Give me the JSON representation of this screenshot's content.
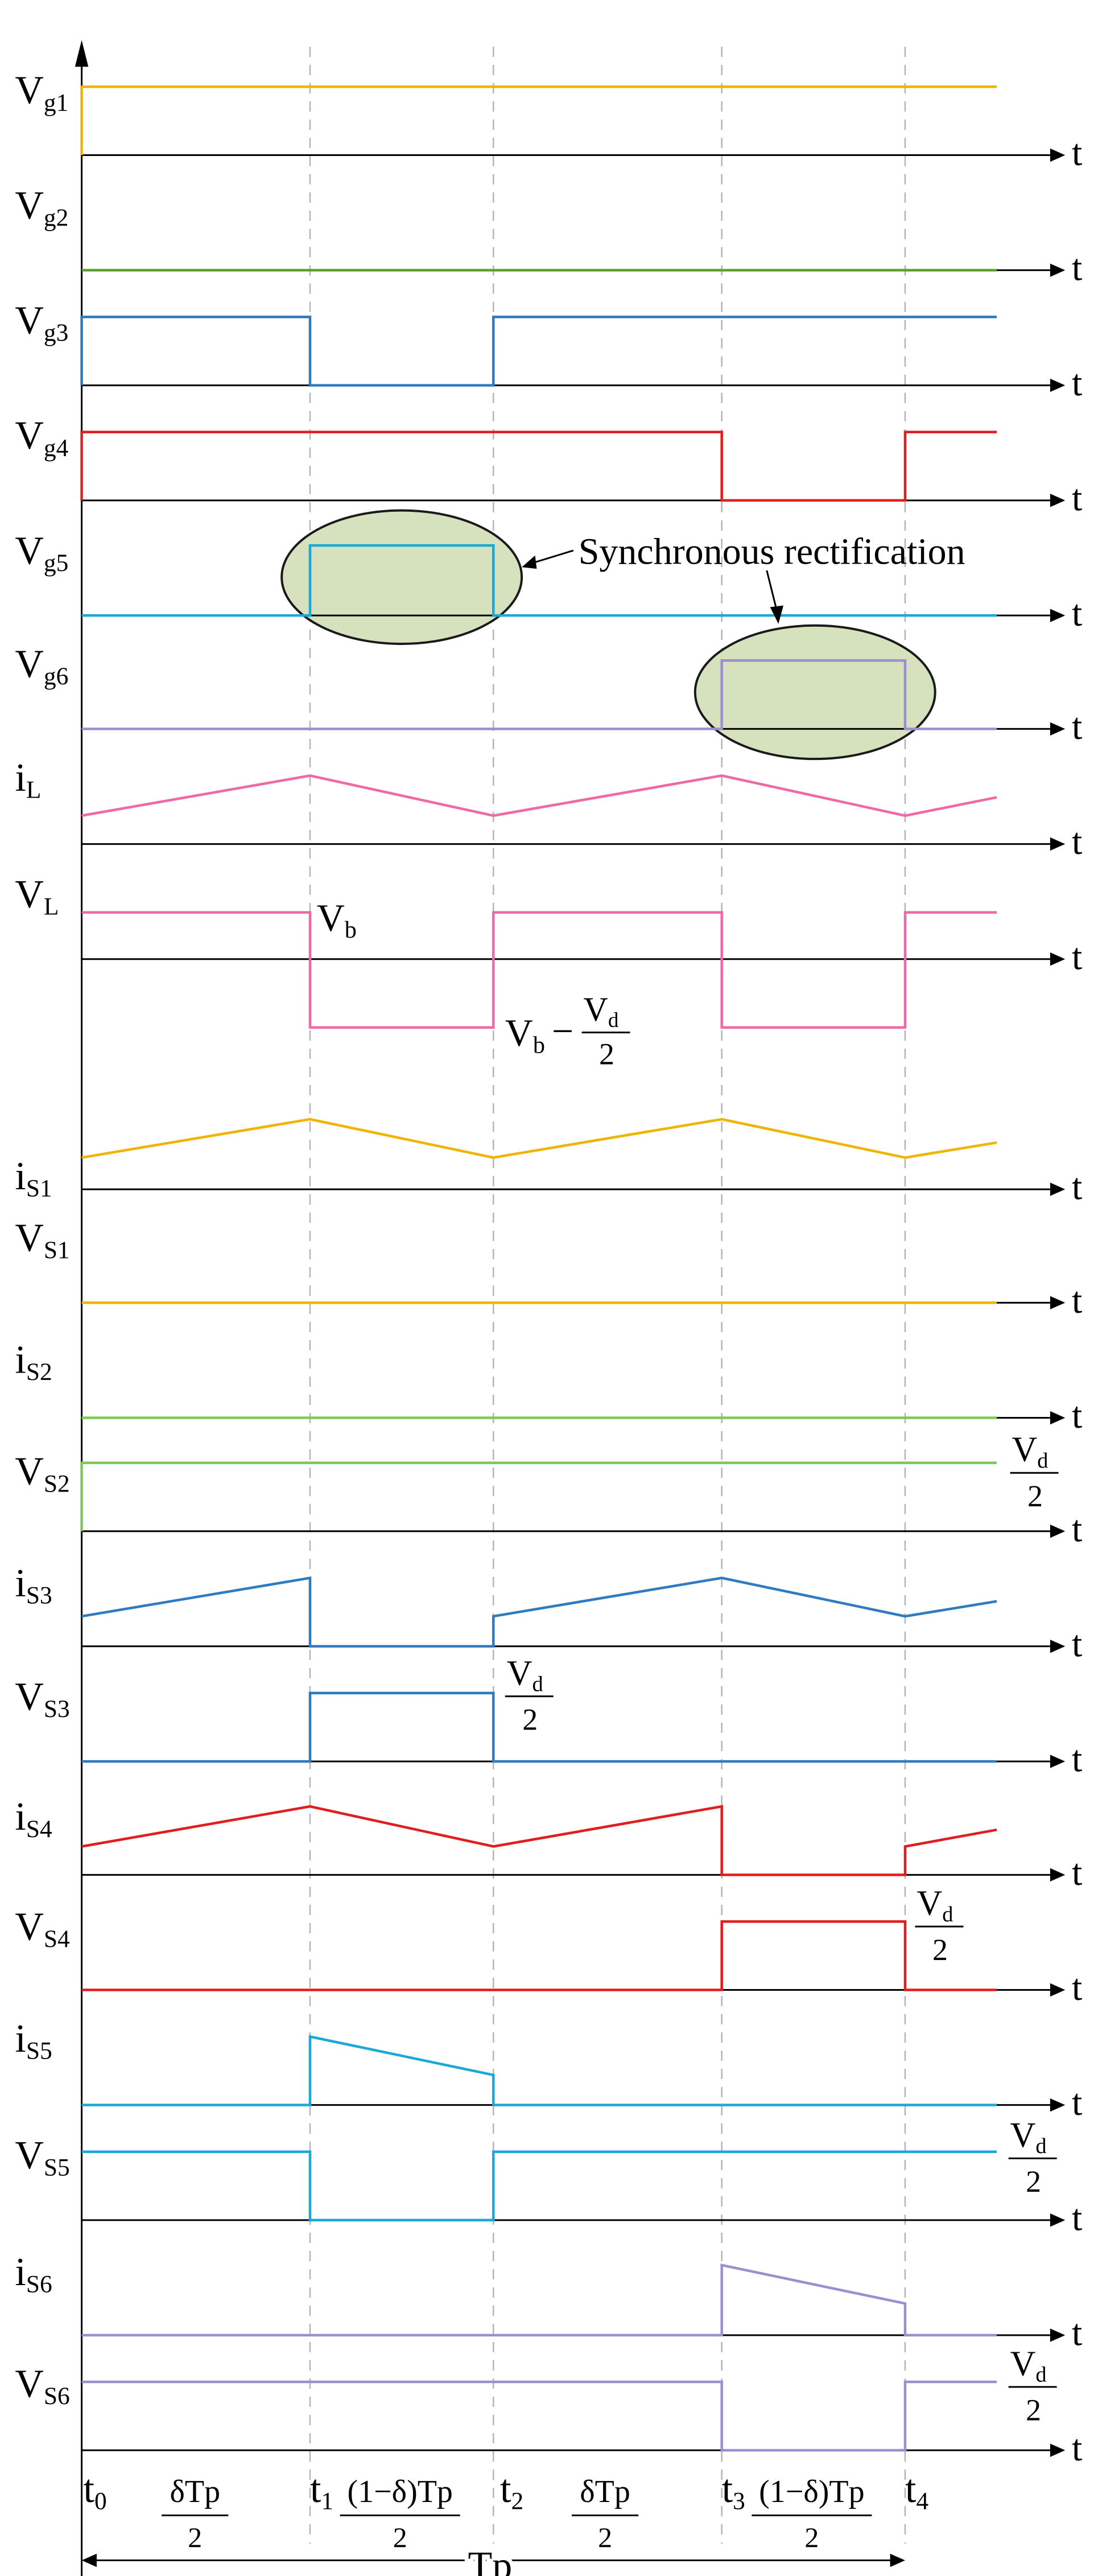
{
  "traces": [
    {
      "key": "vg1",
      "main": "V",
      "sub": "g1",
      "color": "#f0b400"
    },
    {
      "key": "vg2",
      "main": "V",
      "sub": "g2",
      "color": "#5aa02c"
    },
    {
      "key": "vg3",
      "main": "V",
      "sub": "g3",
      "color": "#2e7bbf"
    },
    {
      "key": "vg4",
      "main": "V",
      "sub": "g4",
      "color": "#e01e1e"
    },
    {
      "key": "vg5",
      "main": "V",
      "sub": "g5",
      "color": "#1aa9d6"
    },
    {
      "key": "vg6",
      "main": "V",
      "sub": "g6",
      "color": "#9b8fd0"
    },
    {
      "key": "iL",
      "main": "i",
      "sub": "L",
      "color": "#ef6aa4"
    },
    {
      "key": "VL",
      "main": "V",
      "sub": "L",
      "color": "#ef6aa4"
    },
    {
      "key": "iS1",
      "main": "i",
      "sub": "S1",
      "color": "#f0b400"
    },
    {
      "key": "VS1",
      "main": "V",
      "sub": "S1",
      "color": "#f0b400"
    },
    {
      "key": "iS2",
      "main": "i",
      "sub": "S2",
      "color": "#7cc95a"
    },
    {
      "key": "VS2",
      "main": "V",
      "sub": "S2",
      "color": "#7cc95a"
    },
    {
      "key": "iS3",
      "main": "i",
      "sub": "S3",
      "color": "#2e7bbf"
    },
    {
      "key": "VS3",
      "main": "V",
      "sub": "S3",
      "color": "#2e7bbf"
    },
    {
      "key": "iS4",
      "main": "i",
      "sub": "S4",
      "color": "#e01e1e"
    },
    {
      "key": "VS4",
      "main": "V",
      "sub": "S4",
      "color": "#e01e1e"
    },
    {
      "key": "iS5",
      "main": "i",
      "sub": "S5",
      "color": "#1aa9d6"
    },
    {
      "key": "VS5",
      "main": "V",
      "sub": "S5",
      "color": "#1aa9d6"
    },
    {
      "key": "iS6",
      "main": "i",
      "sub": "S6",
      "color": "#9b8fd0"
    },
    {
      "key": "VS6",
      "main": "V",
      "sub": "S6",
      "color": "#9b8fd0"
    }
  ],
  "axis_label": "t",
  "time_marks": [
    {
      "main": "t",
      "sub": "0"
    },
    {
      "main": "t",
      "sub": "1"
    },
    {
      "main": "t",
      "sub": "2"
    },
    {
      "main": "t",
      "sub": "3"
    },
    {
      "main": "t",
      "sub": "4"
    }
  ],
  "interval_labels": [
    {
      "num": "δTp",
      "den": "2"
    },
    {
      "num": "(1−δ)Tp",
      "den": "2"
    },
    {
      "num": "δTp",
      "den": "2"
    },
    {
      "num": "(1−δ)Tp",
      "den": "2"
    }
  ],
  "period_label": "Tp",
  "annotation": "Synchronous rectification",
  "vl_labels": {
    "high": {
      "main": "V",
      "sub": "b"
    },
    "low": {
      "main": "V",
      "sub": "b",
      "minus": "−",
      "frac_num_main": "V",
      "frac_num_sub": "d",
      "frac_den": "2"
    }
  },
  "vd_half": {
    "main": "V",
    "sub": "d",
    "den": "2"
  },
  "colors": {
    "axis": "#000000",
    "guide": "#b4b4b4",
    "highlight_fill": "#d6e2be",
    "highlight_stroke": "#1a1a1a"
  }
}
